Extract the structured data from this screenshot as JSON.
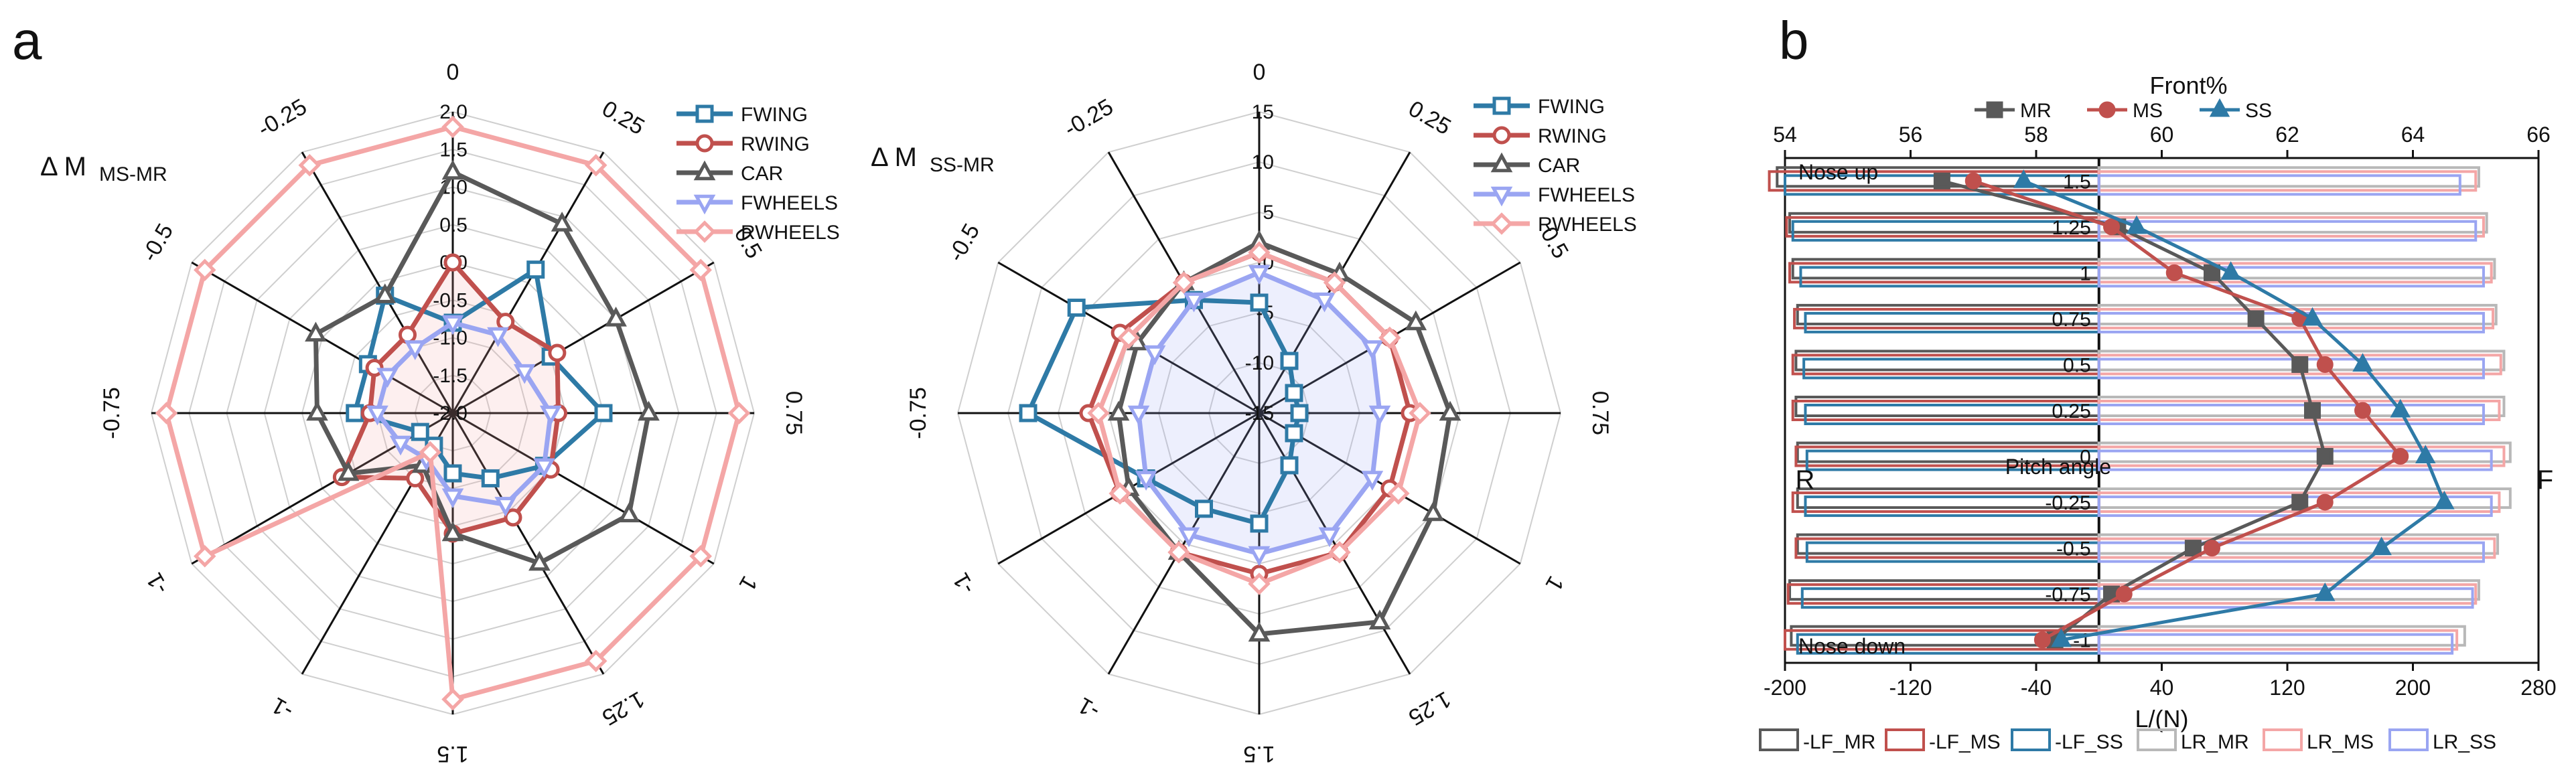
{
  "panels": {
    "a": "a",
    "b": "b"
  },
  "colors": {
    "FWING": "#2e7aa6",
    "RWING": "#c0504d",
    "CAR": "#595959",
    "FWHEELS": "#9aa5f2",
    "RWHEELS": "#f4a6a6",
    "MR": "#595959",
    "MS": "#c0504d",
    "SS": "#2e7aa6",
    "LF_MR": "#595959",
    "LF_MS": "#c0504d",
    "LF_SS": "#2e7aa6",
    "LR_MR": "#b8b8b8",
    "LR_MS": "#f4a6a6",
    "LR_SS": "#9aa5f2"
  },
  "chart_data": [
    {
      "type": "radar",
      "ylabel_main": "Δ M",
      "ylabel_sub": "MS-MR",
      "categories": [
        "0",
        "0.25",
        "0.5",
        "0.75",
        "1",
        "1.25",
        "1.5",
        "-1",
        "-1",
        "-0.75",
        "-0.5",
        "-0.25"
      ],
      "rlim": [
        -2,
        2
      ],
      "rticks": [
        "-2.0",
        "-1.5",
        "-1.0",
        "-0.5",
        "0.0",
        "0.5",
        "1.0",
        "1.5",
        "2.0"
      ],
      "legend_position": "top-right",
      "series": [
        {
          "name": "FWING",
          "marker": "square",
          "values": [
            -0.8,
            0.2,
            -0.5,
            0.0,
            -0.6,
            -1.0,
            -1.2,
            -1.5,
            -1.5,
            -0.7,
            -0.7,
            -0.2
          ]
        },
        {
          "name": "RWING",
          "marker": "circle",
          "values": [
            0.0,
            -0.6,
            -0.4,
            -0.6,
            -0.5,
            -0.4,
            -0.4,
            -1.0,
            -0.3,
            -0.9,
            -0.8,
            -0.8
          ]
        },
        {
          "name": "CAR",
          "marker": "triangle",
          "values": [
            1.2,
            0.9,
            0.5,
            0.6,
            0.7,
            0.3,
            -0.4,
            -1.2,
            -0.4,
            -0.2,
            0.1,
            -0.2
          ]
        },
        {
          "name": "FWHEELS",
          "marker": "tri-down",
          "values": [
            -0.8,
            -0.8,
            -0.9,
            -0.7,
            -0.6,
            -0.6,
            -0.9,
            -1.3,
            -1.2,
            -1.0,
            -1.0,
            -1.0
          ]
        },
        {
          "name": "RWHEELS",
          "marker": "diamond",
          "values": [
            1.8,
            1.8,
            1.8,
            1.8,
            1.8,
            1.8,
            1.8,
            -1.4,
            1.8,
            1.8,
            1.8,
            1.8
          ]
        }
      ]
    },
    {
      "type": "radar",
      "ylabel_main": "Δ M",
      "ylabel_sub": "SS-MR",
      "categories": [
        "0",
        "0.25",
        "0.5",
        "0.75",
        "1",
        "1.25",
        "1.5",
        "-1",
        "-1",
        "-0.75",
        "-0.5",
        "-0.25"
      ],
      "rlim": [
        -15,
        15
      ],
      "rticks": [
        "-15",
        "-10",
        "-5",
        "0",
        "5",
        "10",
        "15"
      ],
      "legend_position": "top-right",
      "series": [
        {
          "name": "FWING",
          "marker": "square",
          "values": [
            -4,
            -9,
            -11,
            -11,
            -11,
            -9,
            -4,
            -4,
            -2,
            8,
            6,
            -2
          ]
        },
        {
          "name": "RWING",
          "marker": "circle",
          "values": [
            1,
            0,
            0,
            0,
            0,
            1,
            1,
            1,
            1,
            2,
            1,
            0
          ]
        },
        {
          "name": "CAR",
          "marker": "triangle",
          "values": [
            2,
            1,
            3,
            4,
            5,
            9,
            7,
            1,
            0,
            -1,
            -1,
            0
          ]
        },
        {
          "name": "FWHEELS",
          "marker": "tri-down",
          "values": [
            -1,
            -2,
            -2,
            -3,
            -2,
            -1,
            -1,
            -1,
            -2,
            -3,
            -3,
            -2
          ]
        },
        {
          "name": "RWHEELS",
          "marker": "diamond",
          "values": [
            1,
            0,
            0,
            1,
            1,
            1,
            2,
            1,
            1,
            1,
            0,
            0
          ]
        }
      ]
    },
    {
      "type": "bar+line",
      "ylabel": "Pitch angle",
      "left_label": "R",
      "right_label": "F",
      "top_note": "Nose up",
      "bottom_note": "Nose down",
      "categories": [
        "1.5",
        "1.25",
        "1",
        "0.75",
        "0.5",
        "0.25",
        "0",
        "-0.25",
        "-0.5",
        "-0.75",
        "-1"
      ],
      "bottom_axis": {
        "label": "L/(N)",
        "lim": [
          -200,
          280
        ],
        "ticks": [
          "-200",
          "-120",
          "-40",
          "40",
          "120",
          "200",
          "280"
        ]
      },
      "top_axis": {
        "label": "Front%",
        "lim": [
          54,
          66
        ],
        "ticks": [
          "54",
          "56",
          "58",
          "60",
          "62",
          "64",
          "66"
        ]
      },
      "bars": [
        {
          "name": "-LF_MR",
          "values": [
            -205,
            -197,
            -195,
            -192,
            -193,
            -193,
            -192,
            -192,
            -192,
            -197,
            -196
          ]
        },
        {
          "name": "-LF_MS",
          "values": [
            -210,
            -199,
            -197,
            -194,
            -195,
            -195,
            -193,
            -195,
            -193,
            -198,
            -200
          ]
        },
        {
          "name": "-LF_SS",
          "values": [
            -200,
            -195,
            -190,
            -187,
            -188,
            -187,
            -186,
            -187,
            -186,
            -189,
            -192
          ]
        },
        {
          "name": "LR_MR",
          "values": [
            242,
            247,
            252,
            253,
            258,
            258,
            262,
            262,
            254,
            242,
            233
          ]
        },
        {
          "name": "LR_MS",
          "values": [
            240,
            245,
            250,
            251,
            256,
            255,
            258,
            255,
            252,
            240,
            228
          ]
        },
        {
          "name": "LR_SS",
          "values": [
            230,
            240,
            245,
            245,
            245,
            245,
            250,
            250,
            245,
            238,
            225
          ]
        }
      ],
      "lines": [
        {
          "name": "MR",
          "marker": "square",
          "values": [
            56.5,
            59.3,
            60.8,
            61.5,
            62.2,
            62.4,
            62.6,
            62.2,
            60.5,
            59.2,
            58.3
          ]
        },
        {
          "name": "MS",
          "marker": "circle",
          "values": [
            57.0,
            59.2,
            60.2,
            62.2,
            62.6,
            63.2,
            63.8,
            62.6,
            60.8,
            59.4,
            58.1
          ]
        },
        {
          "name": "SS",
          "marker": "triangle",
          "values": [
            57.8,
            59.6,
            61.1,
            62.4,
            63.2,
            63.8,
            64.2,
            64.5,
            63.5,
            62.6,
            58.4
          ]
        }
      ],
      "legend_bottom": [
        "-LF_MR",
        "-LF_MS",
        "-LF_SS",
        "LR_MR",
        "LR_MS",
        "LR_SS"
      ],
      "legend_top": [
        "MR",
        "MS",
        "SS"
      ]
    }
  ]
}
